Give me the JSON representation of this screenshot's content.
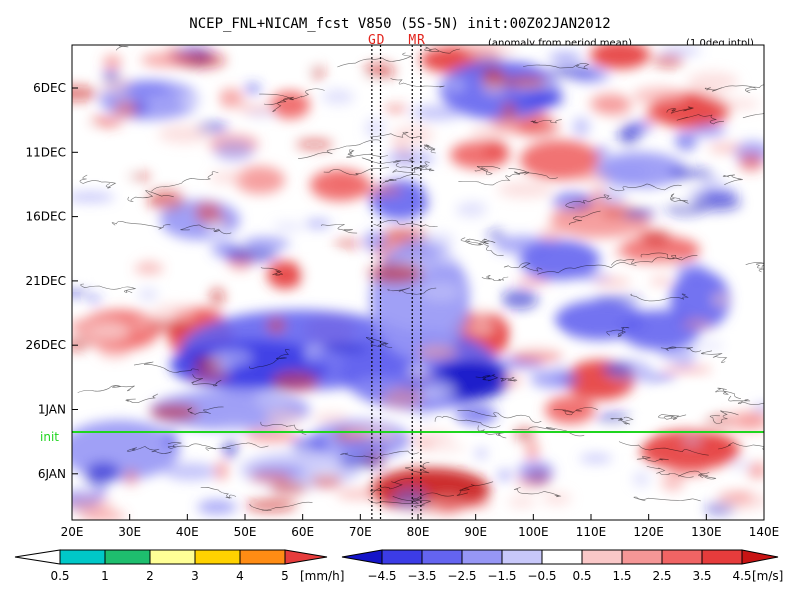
{
  "chart_data": {
    "type": "heatmap",
    "title": "NCEP_FNL+NICAM_fcst V850 (5S-5N) init:00Z02JAN2012",
    "subtitle": "(anomaly from period mean)",
    "note": "(1.0deg intpl)",
    "x_ticks": [
      "20E",
      "30E",
      "40E",
      "50E",
      "60E",
      "70E",
      "80E",
      "90E",
      "100E",
      "110E",
      "120E",
      "130E",
      "140E"
    ],
    "x_range": [
      20,
      140
    ],
    "y_ticks": [
      "6DEC",
      "11DEC",
      "16DEC",
      "21DEC",
      "26DEC",
      "1JAN",
      "6JAN"
    ],
    "init_label": "init",
    "markers": [
      {
        "label": "G",
        "lon": 72
      },
      {
        "label": "D",
        "lon": 73.5
      },
      {
        "label": "M",
        "lon": 79
      },
      {
        "label": "R",
        "lon": 80.5
      }
    ],
    "precip_colorbar": {
      "labels": [
        "0.5",
        "1",
        "2",
        "3",
        "4",
        "5"
      ],
      "unit": "[mm/h]",
      "colors": [
        "#ffffff",
        "#00c8c8",
        "#1ebe6e",
        "#ffff96",
        "#ffd200",
        "#ff8c14",
        "#e63c3c"
      ]
    },
    "wind_colorbar": {
      "labels": [
        "−4.5",
        "−3.5",
        "−2.5",
        "−1.5",
        "−0.5",
        "0.5",
        "1.5",
        "2.5",
        "3.5",
        "4.5"
      ],
      "unit": "[m/s]",
      "colors": [
        "#1414c8",
        "#3c3ce6",
        "#6464f0",
        "#9696f5",
        "#c8c8fa",
        "#ffffff",
        "#fac8c8",
        "#f59696",
        "#f06464",
        "#e63c3c",
        "#c81414"
      ]
    }
  }
}
